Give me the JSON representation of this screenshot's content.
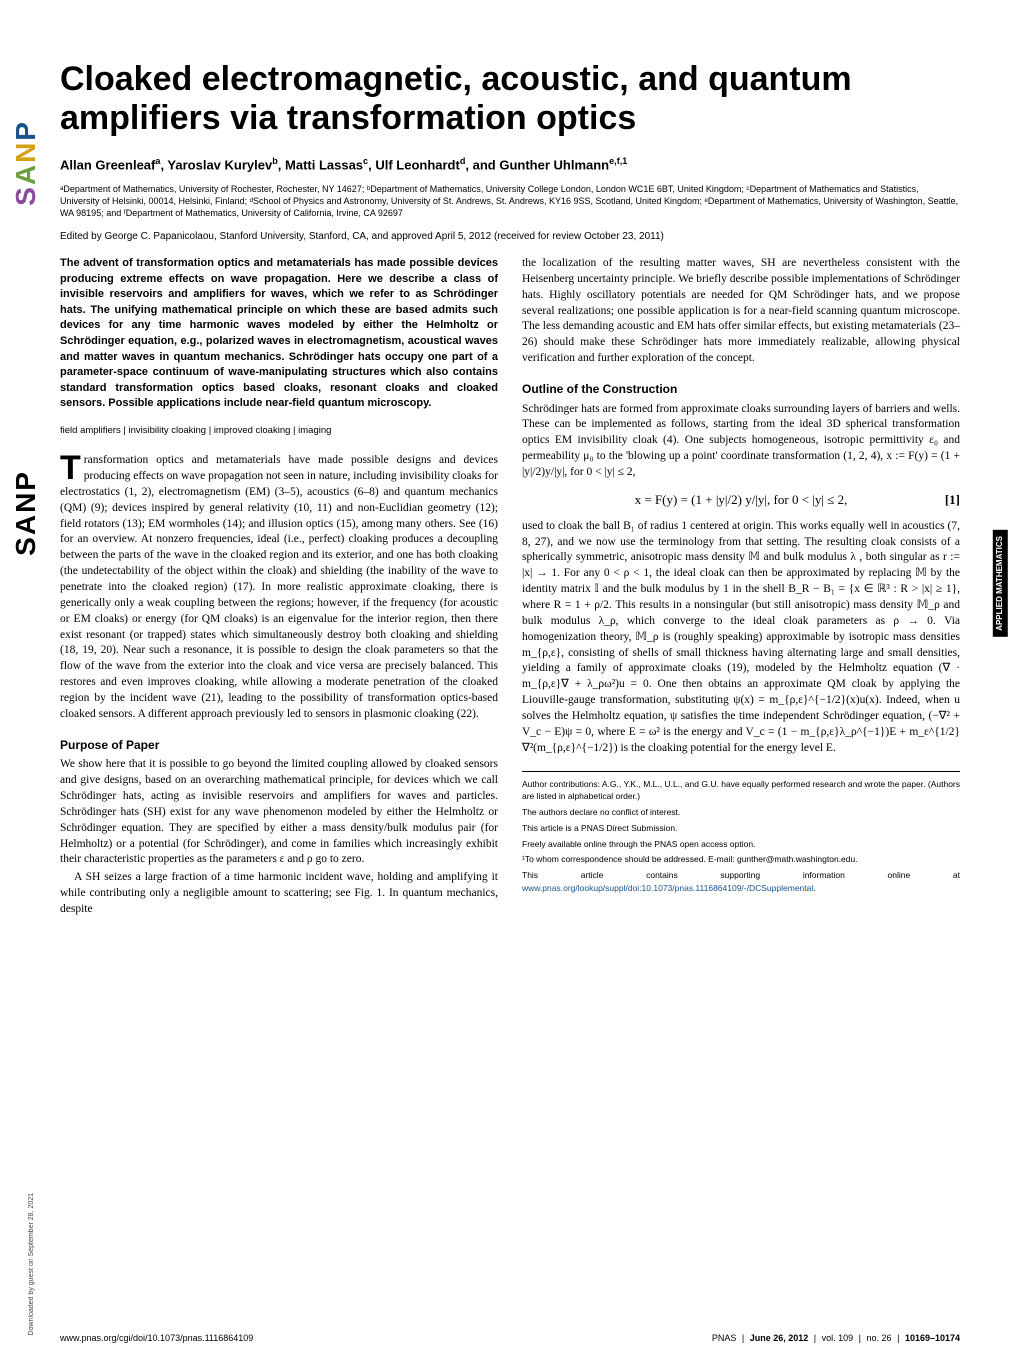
{
  "sidebar": {
    "logo_letters": [
      "P",
      "N",
      "A",
      "S"
    ],
    "download_note": "Downloaded by guest on September 28, 2021"
  },
  "side_label": "APPLIED MATHEMATICS",
  "title": "Cloaked electromagnetic, acoustic, and quantum amplifiers via transformation optics",
  "authors_html": "Allan Greenleaf<sup>a</sup>, Yaroslav Kurylev<sup>b</sup>, Matti Lassas<sup>c</sup>, Ulf Leonhardt<sup>d</sup>, and Gunther Uhlmann<sup>e,f,1</sup>",
  "affiliations": "ᵃDepartment of Mathematics, University of Rochester, Rochester, NY 14627; ᵇDepartment of Mathematics, University College London, London WC1E 6BT, United Kingdom; ᶜDepartment of Mathematics and Statistics, University of Helsinki, 00014, Helsinki, Finland; ᵈSchool of Physics and Astronomy, University of St. Andrews, St. Andrews, KY16 9SS, Scotland, United Kingdom; ᵉDepartment of Mathematics, University of Washington, Seattle, WA 98195; and ᶠDepartment of Mathematics, University of California, Irvine, CA 92697",
  "edited": "Edited by George C. Papanicolaou, Stanford University, Stanford, CA, and approved April 5, 2012 (received for review October 23, 2011)",
  "abstract": "The advent of transformation optics and metamaterials has made possible devices producing extreme effects on wave propagation. Here we describe a class of invisible reservoirs and amplifiers for waves, which we refer to as Schrödinger hats. The unifying mathematical principle on which these are based admits such devices for any time harmonic waves modeled by either the Helmholtz or Schrödinger equation, e.g., polarized waves in electromagnetism, acoustical waves and matter waves in quantum mechanics. Schrödinger hats occupy one part of a parameter-space continuum of wave-manipulating structures which also contains standard transformation optics based cloaks, resonant cloaks and cloaked sensors. Possible applications include near-field quantum microscopy.",
  "keywords": "field amplifiers | invisibility cloaking | improved cloaking | imaging",
  "col1": {
    "p1": "ransformation optics and metamaterials have made possible designs and devices producing effects on wave propagation not seen in nature, including invisibility cloaks for electrostatics (1, 2), electromagnetism (EM) (3–5), acoustics (6–8) and quantum mechanics (QM) (9); devices inspired by general relativity (10, 11) and non-Euclidian geometry (12); field rotators (13); EM wormholes (14); and illusion optics (15), among many others. See (16) for an overview. At nonzero frequencies, ideal (i.e., perfect) cloaking produces a decoupling between the parts of the wave in the cloaked region and its exterior, and one has both cloaking (the undetectability of the object within the cloak) and shielding (the inability of the wave to penetrate into the cloaked region) (17). In more realistic approximate cloaking, there is generically only a weak coupling between the regions; however, if the frequency (for acoustic or EM cloaks) or energy (for QM cloaks) is an eigenvalue for the interior region, then there exist resonant (or trapped) states which simultaneously destroy both cloaking and shielding (18, 19, 20). Near such a resonance, it is possible to design the cloak parameters so that the flow of the wave from the exterior into the cloak and vice versa are precisely balanced. This restores and even improves cloaking, while allowing a moderate penetration of the cloaked region by the incident wave (21), leading to the possibility of transformation optics-based cloaked sensors. A different approach previously led to sensors in plasmonic cloaking (22).",
    "h1": "Purpose of Paper",
    "p2": "We show here that it is possible to go beyond the limited coupling allowed by cloaked sensors and give designs, based on an overarching mathematical principle, for devices which we call Schrödinger hats, acting as invisible reservoirs and amplifiers for waves and particles. Schrödinger hats (SH) exist for any wave phenomenon modeled by either the Helmholtz or Schrödinger equation. They are specified by either a mass density/bulk modulus pair (for Helmholtz) or a potential (for Schrödinger), and come in families which increasingly exhibit their characteristic properties as the parameters ε and ρ go to zero.",
    "p3": "A SH seizes a large fraction of a time harmonic incident wave, holding and amplifying it while contributing only a negligible amount to scattering; see Fig. 1. In quantum mechanics, despite"
  },
  "col2": {
    "p1": "the localization of the resulting matter waves, SH are nevertheless consistent with the Heisenberg uncertainty principle. We briefly describe possible implementations of Schrödinger hats. Highly oscillatory potentials are needed for QM Schrödinger hats, and we propose several realizations; one possible application is for a near-field scanning quantum microscope. The less demanding acoustic and EM hats offer similar effects, but existing metamaterials (23–26) should make these Schrödinger hats more immediately realizable, allowing physical verification and further exploration of the concept.",
    "h1": "Outline of the Construction",
    "p2": "Schrödinger hats are formed from approximate cloaks surrounding layers of barriers and wells. These can be implemented as follows, starting from the ideal 3D spherical transformation optics EM invisibility cloak (4). One subjects homogeneous, isotropic permittivity ε₀ and permeability μ₀ to the 'blowing up a point' coordinate transformation (1, 2, 4), x := F(y) = (1 + |y|/2)y/|y|,    for 0 < |y| ≤ 2,",
    "eq1": "x = F(y) = (1 + |y|/2) y/|y|,   for 0 < |y| ≤ 2,",
    "eq1_num": "[1]",
    "p3": "used to cloak the ball B₁ of radius 1 centered at origin. This works equally well in acoustics (7, 8, 27), and we now use the terminology from that setting. The resulting cloak consists of a spherically symmetric, anisotropic mass density 𝕄 and bulk modulus λ , both singular as r := |x| → 1. For any 0 < ρ < 1, the ideal cloak can then be approximated by replacing 𝕄 by the identity matrix 𝕀 and the bulk modulus by 1 in the shell B_R − B₁ = {x ∈ ℝ³ : R > |x| ≥ 1}, where R = 1 + ρ/2. This results in a nonsingular (but still anisotropic) mass density 𝕄_ρ and bulk modulus λ_ρ, which converge to the ideal cloak parameters as ρ → 0. Via homogenization theory, 𝕄_ρ is (roughly speaking) approximable by isotropic mass densities m_{ρ,ε}, consisting of shells of small thickness having alternating large and small densities, yielding a family of approximate cloaks (19), modeled by the Helmholtz equation (∇ · m_{ρ,ε}∇ + λ_ρω²)u = 0. One then obtains an approximate QM cloak by applying the Liouville-gauge transformation, substituting ψ(x) = m_{ρ,ε}^{−1/2}(x)u(x). Indeed, when u solves the Helmholtz equation, ψ satisfies the time independent Schrödinger equation, (−∇² + V_c − E)ψ = 0, where E = ω² is the energy and V_c = (1 − m_{ρ,ε}λ_ρ^{−1})E + m_ε^{1/2}∇²(m_{ρ,ε}^{−1/2}) is the cloaking potential for the energy level E."
  },
  "footer_box": {
    "l1": "Author contributions: A.G., Y.K., M.L., U.L., and G.U. have equally performed research and wrote the paper. (Authors are listed in alphabetical order.)",
    "l2": "The authors declare no conflict of interest.",
    "l3": "This article is a PNAS Direct Submission.",
    "l4": "Freely available online through the PNAS open access option.",
    "l5": "¹To whom correspondence should be addressed. E-mail: gunther@math.washington.edu.",
    "l6a": "This article contains supporting information online at ",
    "l6_link": "www.pnas.org/lookup/suppl/doi:10.1073/pnas.1116864109/-/DCSupplemental",
    "l6b": "."
  },
  "page_footer": {
    "left": "www.pnas.org/cgi/doi/10.1073/pnas.1116864109",
    "center_label": "PNAS",
    "date": "June 26, 2012",
    "vol": "vol. 109",
    "no": "no. 26",
    "pages": "10169–10174"
  }
}
